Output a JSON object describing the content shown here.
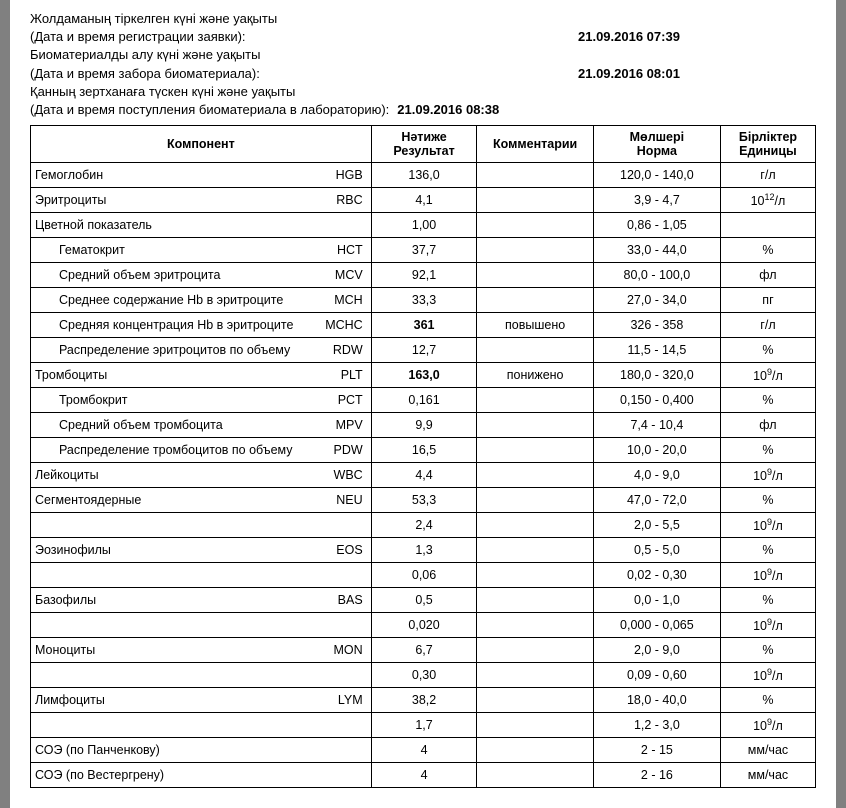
{
  "header": {
    "reg_kz": "Жолдаманың  тіркелген күні және уақыты",
    "reg_ru": "(Дата и время регистрации заявки):",
    "reg_val": "21.09.2016 07:39",
    "bio_kz": "Биоматериалды алу күні және уақыты",
    "bio_ru": "(Дата и время забора биоматериала):",
    "bio_val": "21.09.2016 08:01",
    "lab_kz": "Қанның зертханаға түскен күні және уақыты",
    "lab_ru": "(Дата и время поступления биоматериала в лабораторию):",
    "lab_val": "21.09.2016 08:38"
  },
  "columns": {
    "component": "Компонент",
    "result_kz": "Нәтиже",
    "result_ru": "Результат",
    "comment": "Комментарии",
    "norm_kz": "Мөлшері",
    "norm_ru": "Норма",
    "unit_kz": "Бірліктер",
    "unit_ru": "Единицы"
  },
  "rows": [
    {
      "name": "Гемоглобин",
      "abbr": "HGB",
      "res": "136,0",
      "comm": "",
      "norm": "120,0 - 140,0",
      "unit": "г/л",
      "indent": false,
      "bold": false
    },
    {
      "name": "Эритроциты",
      "abbr": "RBC",
      "res": "4,1",
      "comm": "",
      "norm": "3,9 - 4,7",
      "unit": "10^12/л",
      "indent": false,
      "bold": false
    },
    {
      "name": "Цветной показатель",
      "abbr": "",
      "res": "1,00",
      "comm": "",
      "norm": "0,86 - 1,05",
      "unit": "",
      "indent": false,
      "bold": false
    },
    {
      "name": "Гематокрит",
      "abbr": "HCT",
      "res": "37,7",
      "comm": "",
      "norm": "33,0 - 44,0",
      "unit": "%",
      "indent": true,
      "bold": false
    },
    {
      "name": "Средний объем эритроцита",
      "abbr": "MCV",
      "res": "92,1",
      "comm": "",
      "norm": "80,0 - 100,0",
      "unit": "фл",
      "indent": true,
      "bold": false
    },
    {
      "name": "Среднее содержание Hb в эритроците",
      "abbr": "MCH",
      "res": "33,3",
      "comm": "",
      "norm": "27,0 - 34,0",
      "unit": "пг",
      "indent": true,
      "bold": false
    },
    {
      "name": "Средняя концентрация Hb в эритроците",
      "abbr": "MCHC",
      "res": "361",
      "comm": "повышено",
      "norm": "326 - 358",
      "unit": "г/л",
      "indent": true,
      "bold": true
    },
    {
      "name": "Распределение эритроцитов по объему",
      "abbr": "RDW",
      "res": "12,7",
      "comm": "",
      "norm": "11,5 - 14,5",
      "unit": "%",
      "indent": true,
      "bold": false
    },
    {
      "name": "Тромбоциты",
      "abbr": "PLT",
      "res": "163,0",
      "comm": "понижено",
      "norm": "180,0 - 320,0",
      "unit": "10^9/л",
      "indent": false,
      "bold": true
    },
    {
      "name": "Тромбокрит",
      "abbr": "PCT",
      "res": "0,161",
      "comm": "",
      "norm": "0,150 - 0,400",
      "unit": "%",
      "indent": true,
      "bold": false
    },
    {
      "name": "Средний объем тромбоцита",
      "abbr": "MPV",
      "res": "9,9",
      "comm": "",
      "norm": "7,4 - 10,4",
      "unit": "фл",
      "indent": true,
      "bold": false
    },
    {
      "name": "Распределение тромбоцитов по объему",
      "abbr": "PDW",
      "res": "16,5",
      "comm": "",
      "norm": "10,0 - 20,0",
      "unit": "%",
      "indent": true,
      "bold": false
    },
    {
      "name": "Лейкоциты",
      "abbr": "WBC",
      "res": "4,4",
      "comm": "",
      "norm": "4,0 - 9,0",
      "unit": "10^9/л",
      "indent": false,
      "bold": false
    },
    {
      "name": "Сегментоядерные",
      "abbr": "NEU",
      "res": "53,3",
      "comm": "",
      "norm": "47,0 - 72,0",
      "unit": "%",
      "indent": false,
      "bold": false
    },
    {
      "name": "",
      "abbr": "",
      "res": "2,4",
      "comm": "",
      "norm": "2,0 - 5,5",
      "unit": "10^9/л",
      "indent": false,
      "bold": false
    },
    {
      "name": "Эозинофилы",
      "abbr": "EOS",
      "res": "1,3",
      "comm": "",
      "norm": "0,5 - 5,0",
      "unit": "%",
      "indent": false,
      "bold": false
    },
    {
      "name": "",
      "abbr": "",
      "res": "0,06",
      "comm": "",
      "norm": "0,02 - 0,30",
      "unit": "10^9/л",
      "indent": false,
      "bold": false
    },
    {
      "name": "Базофилы",
      "abbr": "BAS",
      "res": "0,5",
      "comm": "",
      "norm": "0,0 - 1,0",
      "unit": "%",
      "indent": false,
      "bold": false
    },
    {
      "name": "",
      "abbr": "",
      "res": "0,020",
      "comm": "",
      "norm": "0,000 - 0,065",
      "unit": "10^9/л",
      "indent": false,
      "bold": false
    },
    {
      "name": "Моноциты",
      "abbr": "MON",
      "res": "6,7",
      "comm": "",
      "norm": "2,0 - 9,0",
      "unit": "%",
      "indent": false,
      "bold": false
    },
    {
      "name": "",
      "abbr": "",
      "res": "0,30",
      "comm": "",
      "norm": "0,09 - 0,60",
      "unit": "10^9/л",
      "indent": false,
      "bold": false
    },
    {
      "name": "Лимфоциты",
      "abbr": "LYM",
      "res": "38,2",
      "comm": "",
      "norm": "18,0 - 40,0",
      "unit": "%",
      "indent": false,
      "bold": false
    },
    {
      "name": "",
      "abbr": "",
      "res": "1,7",
      "comm": "",
      "norm": "1,2 - 3,0",
      "unit": "10^9/л",
      "indent": false,
      "bold": false
    },
    {
      "name": "СОЭ (по Панченкову)",
      "abbr": "",
      "res": "4",
      "comm": "",
      "norm": "2 - 15",
      "unit": "мм/час",
      "indent": false,
      "bold": false
    },
    {
      "name": "СОЭ (по Вестергрену)",
      "abbr": "",
      "res": "4",
      "comm": "",
      "norm": "2 - 16",
      "unit": "мм/час",
      "indent": false,
      "bold": false
    }
  ]
}
